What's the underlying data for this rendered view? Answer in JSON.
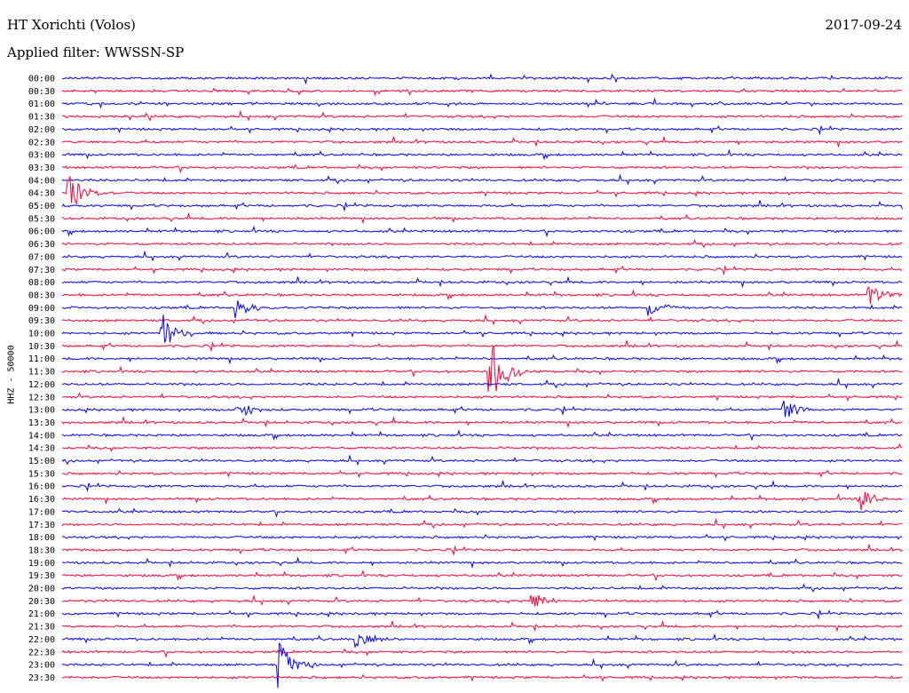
{
  "header": {
    "station": "HT Xorichti (Volos)",
    "date": "2017-09-24",
    "filter": "Applied filter: WWSSN-SP"
  },
  "chart_data": {
    "type": "line",
    "title": "HT Xorichti (Volos)",
    "ylabel": "HHZ - 50000",
    "time_labels": [
      "00:00",
      "00:30",
      "01:00",
      "01:30",
      "02:00",
      "02:30",
      "03:00",
      "03:30",
      "04:00",
      "04:30",
      "05:00",
      "05:30",
      "06:00",
      "06:30",
      "07:00",
      "07:30",
      "08:00",
      "08:30",
      "09:00",
      "09:30",
      "10:00",
      "10:30",
      "11:00",
      "11:30",
      "12:00",
      "12:30",
      "13:00",
      "13:30",
      "14:00",
      "14:30",
      "15:00",
      "15:30",
      "16:00",
      "16:30",
      "17:00",
      "17:30",
      "18:00",
      "18:30",
      "19:00",
      "19:30",
      "20:00",
      "20:30",
      "21:00",
      "21:30",
      "22:00",
      "22:30",
      "23:00",
      "23:30"
    ],
    "trace_colors": [
      "#0000ff",
      "#ff0033"
    ],
    "events": [
      {
        "time": "10:00",
        "x_frac": 0.12,
        "amp": 22
      },
      {
        "time": "11:30",
        "x_frac": 0.51,
        "amp": 40
      },
      {
        "time": "13:00",
        "x_frac": 0.21,
        "amp": 14
      },
      {
        "time": "13:00",
        "x_frac": 0.86,
        "amp": 12
      },
      {
        "time": "09:00",
        "x_frac": 0.7,
        "amp": 10
      },
      {
        "time": "09:00",
        "x_frac": 0.21,
        "amp": 12
      },
      {
        "time": "16:30",
        "x_frac": 0.95,
        "amp": 12
      },
      {
        "time": "20:30",
        "x_frac": 0.56,
        "amp": 12
      },
      {
        "time": "22:00",
        "x_frac": 0.35,
        "amp": 10
      },
      {
        "time": "23:00",
        "x_frac": 0.26,
        "amp": 26
      },
      {
        "time": "08:30",
        "x_frac": 0.96,
        "amp": 14
      },
      {
        "time": "04:30",
        "x_frac": 0.01,
        "amp": 20
      }
    ]
  }
}
